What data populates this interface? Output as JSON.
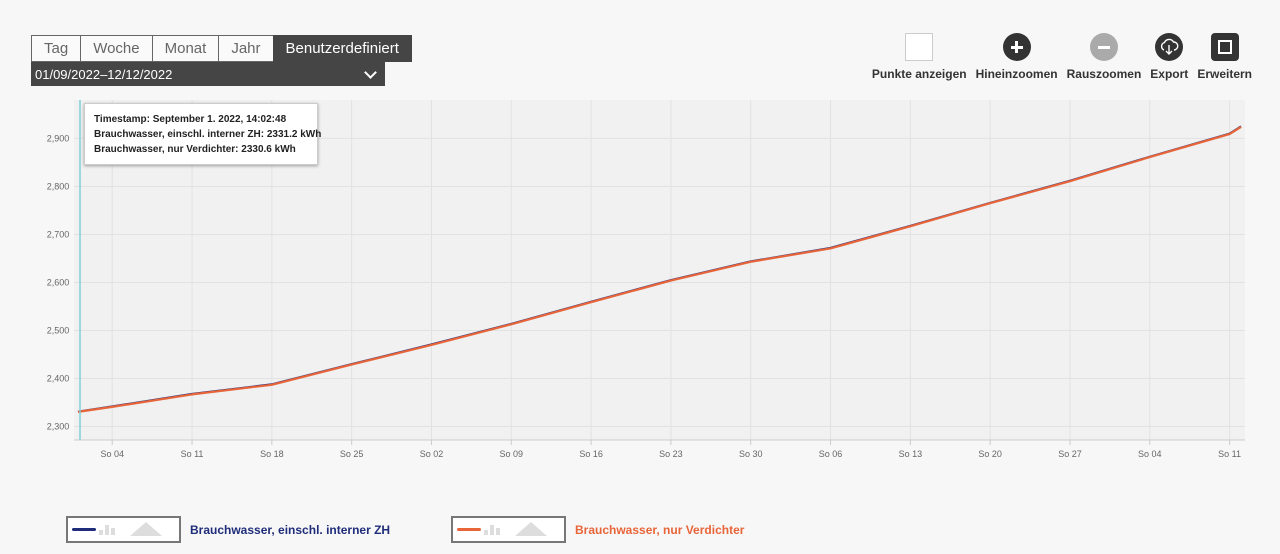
{
  "period": {
    "tabs": [
      "Tag",
      "Woche",
      "Monat",
      "Jahr",
      "Benutzerdefiniert"
    ],
    "active_index": 4,
    "range_label": "01/09/2022–12/12/2022"
  },
  "toolbar": {
    "points_label": "Punkte anzeigen",
    "zoom_in_label": "Hineinzoomen",
    "zoom_out_label": "Rauszoomen",
    "export_label": "Export",
    "expand_label": "Erweitern"
  },
  "tooltip": {
    "line1": "Timestamp: September 1. 2022, 14:02:48",
    "line2": "Brauchwasser, einschl. interner ZH: 2331.2 kWh",
    "line3": "Brauchwasser, nur Verdichter: 2330.6 kWh"
  },
  "chart_data": {
    "type": "line",
    "x_start": "2022-09-01",
    "x_end": "2022-12-12",
    "x_ticks": [
      {
        "date": "2022-09-04",
        "label": "So 04"
      },
      {
        "date": "2022-09-11",
        "label": "So 11"
      },
      {
        "date": "2022-09-18",
        "label": "So 18"
      },
      {
        "date": "2022-09-25",
        "label": "So 25"
      },
      {
        "date": "2022-10-02",
        "label": "So 02"
      },
      {
        "date": "2022-10-09",
        "label": "So 09"
      },
      {
        "date": "2022-10-16",
        "label": "So 16"
      },
      {
        "date": "2022-10-23",
        "label": "So 23"
      },
      {
        "date": "2022-10-30",
        "label": "So 30"
      },
      {
        "date": "2022-11-06",
        "label": "So 06"
      },
      {
        "date": "2022-11-13",
        "label": "So 13"
      },
      {
        "date": "2022-11-20",
        "label": "So 20"
      },
      {
        "date": "2022-11-27",
        "label": "So 27"
      },
      {
        "date": "2022-12-04",
        "label": "So 04"
      },
      {
        "date": "2022-12-11",
        "label": "So 11"
      }
    ],
    "y_ticks": [
      {
        "value": 2300,
        "label": "2,300"
      },
      {
        "value": 2400,
        "label": "2,400"
      },
      {
        "value": 2500,
        "label": "2,500"
      },
      {
        "value": 2600,
        "label": "2,600"
      },
      {
        "value": 2700,
        "label": "2,700"
      },
      {
        "value": 2800,
        "label": "2,800"
      },
      {
        "value": 2900,
        "label": "2,900"
      }
    ],
    "ylim": [
      2272,
      2980
    ],
    "grid": true,
    "cursor_date": "2022-09-01",
    "series": [
      {
        "name": "Brauchwasser, einschl. interner ZH",
        "color": "#1f2d7a",
        "x": [
          "2022-09-01",
          "2022-09-04",
          "2022-09-11",
          "2022-09-18",
          "2022-09-25",
          "2022-10-02",
          "2022-10-09",
          "2022-10-16",
          "2022-10-23",
          "2022-10-30",
          "2022-11-06",
          "2022-11-13",
          "2022-11-20",
          "2022-11-27",
          "2022-12-04",
          "2022-12-11",
          "2022-12-12"
        ],
        "y": [
          2331.2,
          2342,
          2368,
          2388,
          2430,
          2471,
          2514,
          2560,
          2605,
          2644,
          2672,
          2718,
          2766,
          2812,
          2862,
          2910,
          2925
        ]
      },
      {
        "name": "Brauchwasser, nur Verdichter",
        "color": "#e8653a",
        "x": [
          "2022-09-01",
          "2022-09-04",
          "2022-09-11",
          "2022-09-18",
          "2022-09-25",
          "2022-10-02",
          "2022-10-09",
          "2022-10-16",
          "2022-10-23",
          "2022-10-30",
          "2022-11-06",
          "2022-11-13",
          "2022-11-20",
          "2022-11-27",
          "2022-12-04",
          "2022-12-11",
          "2022-12-12"
        ],
        "y": [
          2330.6,
          2341,
          2367,
          2387,
          2429,
          2470,
          2513,
          2559,
          2604,
          2643,
          2671,
          2717,
          2765,
          2811,
          2861,
          2909,
          2924
        ]
      }
    ]
  },
  "legend": [
    {
      "label": "Brauchwasser, einschl. interner ZH",
      "color": "#1f2d7a"
    },
    {
      "label": "Brauchwasser, nur Verdichter",
      "color": "#e8653a"
    }
  ]
}
